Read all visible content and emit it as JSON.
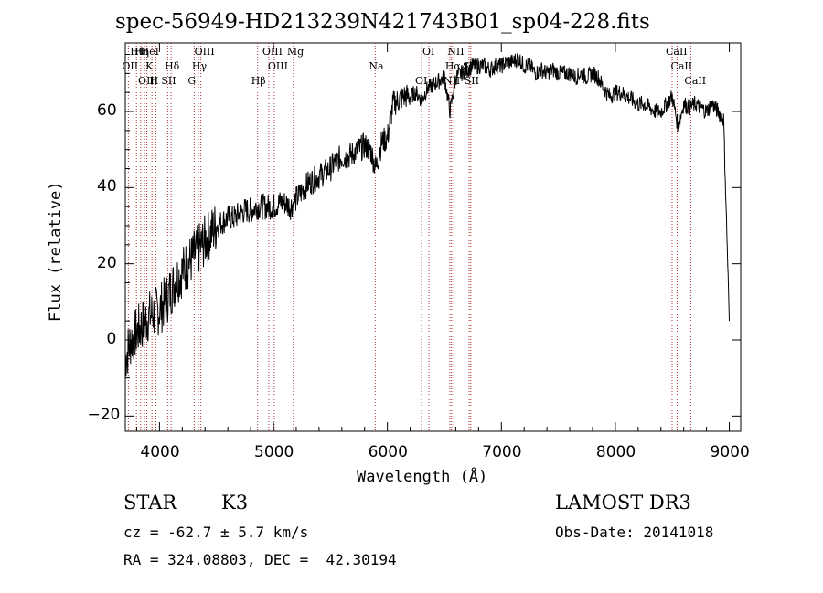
{
  "chart_data": {
    "type": "line",
    "title": "spec-56949-HD213239N421743B01_sp04-228.fits",
    "xlabel": "Wavelength (Å)",
    "ylabel": "Flux (relative)",
    "xlim": [
      3700,
      9100
    ],
    "ylim": [
      -24,
      78
    ],
    "xticks": [
      4000,
      5000,
      6000,
      7000,
      8000,
      9000
    ],
    "xtick_labels": [
      "4000",
      "5000",
      "6000",
      "7000",
      "8000",
      "9000"
    ],
    "yticks": [
      -20,
      0,
      20,
      40,
      60
    ],
    "ytick_labels": [
      "-20",
      "0",
      "20",
      "40",
      "60"
    ],
    "series": [
      {
        "name": "spectrum",
        "color": "#000000",
        "x": [
          3700,
          3750,
          3800,
          3850,
          3900,
          3950,
          4000,
          4050,
          4100,
          4150,
          4200,
          4250,
          4300,
          4350,
          4400,
          4450,
          4500,
          4550,
          4600,
          4650,
          4700,
          4750,
          4800,
          4850,
          4900,
          4950,
          5000,
          5050,
          5100,
          5150,
          5200,
          5250,
          5300,
          5350,
          5400,
          5450,
          5500,
          5550,
          5600,
          5650,
          5700,
          5750,
          5800,
          5850,
          5900,
          5950,
          6000,
          6050,
          6100,
          6150,
          6200,
          6250,
          6300,
          6350,
          6400,
          6450,
          6500,
          6550,
          6600,
          6650,
          6700,
          6750,
          6800,
          6850,
          6900,
          6950,
          7000,
          7050,
          7100,
          7150,
          7200,
          7250,
          7300,
          7350,
          7400,
          7450,
          7500,
          7550,
          7600,
          7650,
          7700,
          7750,
          7800,
          7850,
          7900,
          7950,
          8000,
          8050,
          8100,
          8150,
          8200,
          8250,
          8300,
          8350,
          8400,
          8450,
          8500,
          8550,
          8600,
          8650,
          8700,
          8750,
          8800,
          8850,
          8900,
          8950,
          9000
        ],
        "y": [
          -5,
          0,
          2,
          4,
          6,
          7,
          8,
          10,
          13,
          16,
          18,
          20,
          22,
          24,
          26,
          28,
          30,
          31,
          32,
          32,
          33,
          34,
          34,
          35,
          35,
          35,
          35,
          36,
          36,
          35,
          37,
          39,
          41,
          42,
          43,
          44,
          45,
          47,
          48,
          48,
          49,
          50,
          51,
          50,
          45,
          52,
          53,
          62,
          63,
          64,
          64,
          65,
          63,
          66,
          67,
          68,
          69,
          60,
          69,
          70,
          71,
          72,
          72,
          72,
          71,
          72,
          72,
          73,
          73,
          74,
          72,
          72,
          70,
          71,
          70,
          71,
          70,
          70,
          70,
          69,
          70,
          69,
          70,
          69,
          66,
          64,
          65,
          65,
          64,
          63,
          62,
          62,
          61,
          60,
          60,
          62,
          64,
          56,
          62,
          61,
          62,
          61,
          60,
          62,
          60,
          58,
          5
        ]
      }
    ],
    "spectral_lines": [
      {
        "label": "Hθ",
        "wave": 3798
      },
      {
        "label": "OII",
        "wave": 3727
      },
      {
        "label": "OIII",
        "wave": 3869
      },
      {
        "label": "HeI",
        "wave": 3889
      },
      {
        "label": "K",
        "wave": 3934
      },
      {
        "label": "H",
        "wave": 3968
      },
      {
        "label": "Hη",
        "wave": 3835
      },
      {
        "label": "Hδ",
        "wave": 4102
      },
      {
        "label": "SII",
        "wave": 4072
      },
      {
        "label": "OIII",
        "wave": 4363
      },
      {
        "label": "Hγ",
        "wave": 4341
      },
      {
        "label": "G",
        "wave": 4305
      },
      {
        "label": "OIII",
        "wave": 4959
      },
      {
        "label": "OIII",
        "wave": 5007
      },
      {
        "label": "Hβ",
        "wave": 4861
      },
      {
        "label": "Mg",
        "wave": 5175
      },
      {
        "label": "Na",
        "wave": 5893
      },
      {
        "label": "OI",
        "wave": 6300
      },
      {
        "label": "OI",
        "wave": 6364
      },
      {
        "label": "Hα",
        "wave": 6563
      },
      {
        "label": "NII",
        "wave": 6548
      },
      {
        "label": "NII",
        "wave": 6583
      },
      {
        "label": "SII",
        "wave": 6717
      },
      {
        "label": "SII",
        "wave": 6731
      },
      {
        "label": "CaII",
        "wave": 8498
      },
      {
        "label": "CaII",
        "wave": 8542
      },
      {
        "label": "CaII",
        "wave": 8662
      }
    ]
  },
  "info": {
    "class_label": "STAR",
    "subclass": "K3",
    "survey": "LAMOST DR3",
    "cz": "cz = -62.7 ± 5.7 km/s",
    "obs_date": "Obs-Date: 20141018",
    "coords": "RA = 324.08803, DEC =  42.30194"
  },
  "colors": {
    "line_marker": "#b03030",
    "spectrum": "#000000"
  }
}
